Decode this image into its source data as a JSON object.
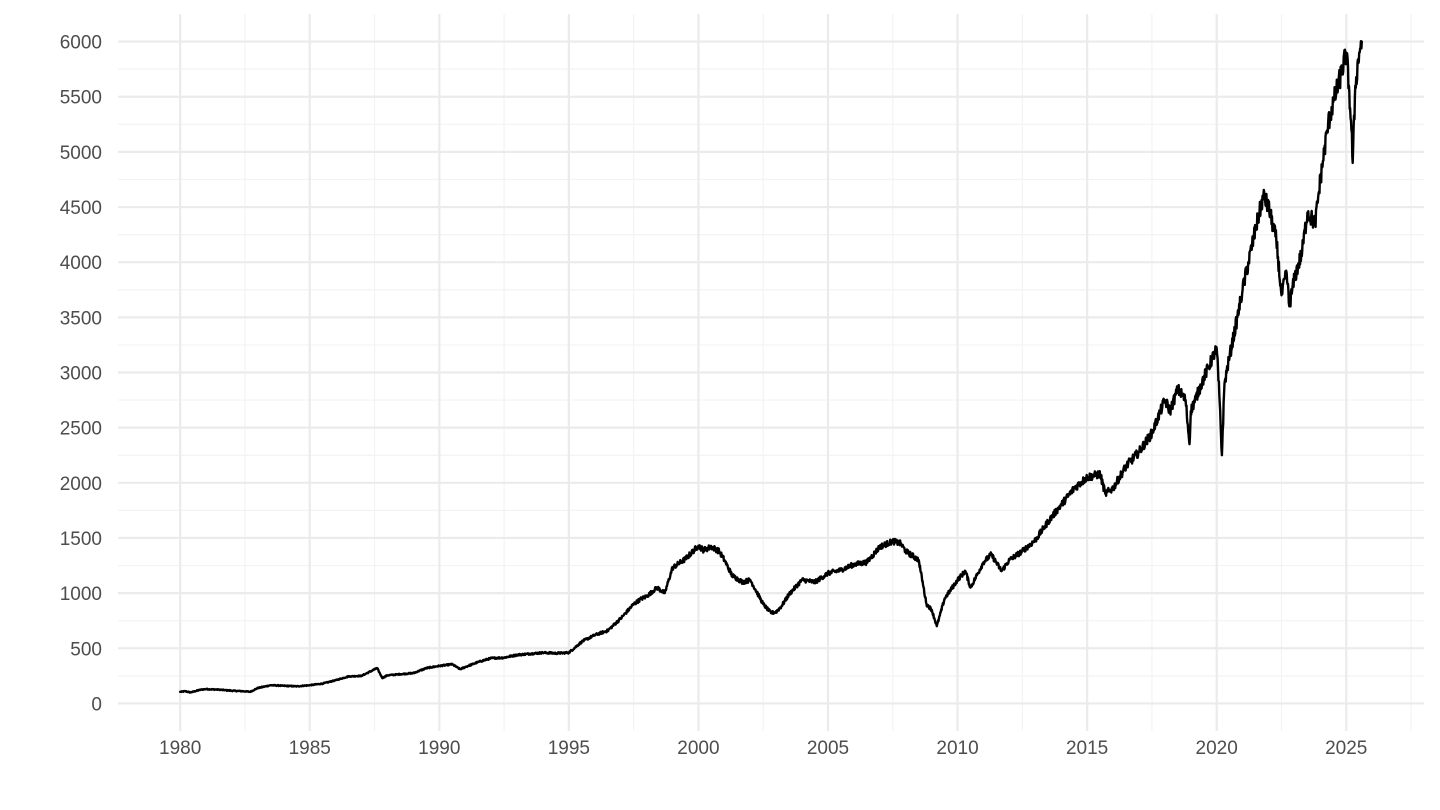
{
  "chart_data": {
    "type": "line",
    "title": "",
    "xlabel": "",
    "ylabel": "",
    "xlim": [
      1977.6,
      2028.0
    ],
    "ylim": [
      -250,
      6250
    ],
    "grid": true,
    "legend": "none",
    "line_color": "#000000",
    "grid_color": "#ebebeb",
    "x_ticks": [
      1980,
      1985,
      1990,
      1995,
      2000,
      2005,
      2010,
      2015,
      2020,
      2025
    ],
    "x_tick_labels": [
      "1980",
      "1985",
      "1990",
      "1995",
      "2000",
      "2005",
      "2010",
      "2015",
      "2020",
      "2025"
    ],
    "y_ticks": [
      0,
      500,
      1000,
      1500,
      2000,
      2500,
      3000,
      3500,
      4000,
      4500,
      5000,
      5500,
      6000
    ],
    "y_tick_labels": [
      "0",
      "500",
      "1000",
      "1500",
      "2000",
      "2500",
      "3000",
      "3500",
      "4000",
      "4500",
      "5000",
      "5500",
      "6000"
    ],
    "series": [
      {
        "x": [
          1980.0,
          1980.2,
          1980.4,
          1980.8,
          1981.0,
          1981.5,
          1982.0,
          1982.5,
          1982.7,
          1983.0,
          1983.5,
          1984.0,
          1984.5,
          1985.0,
          1985.5,
          1986.0,
          1986.5,
          1987.0,
          1987.6,
          1987.8,
          1988.0,
          1988.5,
          1989.0,
          1989.5,
          1990.0,
          1990.5,
          1990.8,
          1991.0,
          1991.5,
          1992.0,
          1992.5,
          1993.0,
          1993.5,
          1994.0,
          1994.5,
          1995.0,
          1995.5,
          1996.0,
          1996.5,
          1997.0,
          1997.5,
          1997.8,
          1998.0,
          1998.4,
          1998.7,
          1999.0,
          1999.5,
          2000.0,
          2000.2,
          2000.5,
          2000.8,
          2001.0,
          2001.3,
          2001.7,
          2002.0,
          2002.5,
          2002.8,
          2003.0,
          2003.2,
          2003.5,
          2004.0,
          2004.5,
          2005.0,
          2005.5,
          2006.0,
          2006.5,
          2007.0,
          2007.5,
          2007.8,
          2008.0,
          2008.5,
          2008.8,
          2009.0,
          2009.2,
          2009.5,
          2010.0,
          2010.3,
          2010.5,
          2011.0,
          2011.3,
          2011.7,
          2012.0,
          2012.5,
          2013.0,
          2013.5,
          2014.0,
          2014.5,
          2015.0,
          2015.5,
          2015.7,
          2016.0,
          2016.5,
          2017.0,
          2017.5,
          2018.0,
          2018.2,
          2018.5,
          2018.8,
          2018.95,
          2019.0,
          2019.5,
          2020.0,
          2020.1,
          2020.2,
          2020.3,
          2020.5,
          2020.8,
          2021.0,
          2021.5,
          2021.8,
          2022.0,
          2022.3,
          2022.5,
          2022.7,
          2022.8,
          2023.0,
          2023.3,
          2023.5,
          2023.8,
          2024.0,
          2024.3,
          2024.5,
          2024.8,
          2025.0,
          2025.1,
          2025.2,
          2025.25,
          2025.35,
          2025.5,
          2025.6
        ],
        "values": [
          105,
          110,
          100,
          125,
          130,
          125,
          115,
          110,
          105,
          140,
          165,
          160,
          155,
          165,
          180,
          210,
          245,
          250,
          320,
          230,
          255,
          265,
          275,
          320,
          340,
          355,
          310,
          330,
          375,
          410,
          415,
          440,
          450,
          460,
          455,
          460,
          560,
          620,
          660,
          770,
          900,
          950,
          970,
          1050,
          1000,
          1230,
          1310,
          1430,
          1390,
          1420,
          1380,
          1300,
          1160,
          1100,
          1120,
          900,
          820,
          830,
          880,
          990,
          1120,
          1100,
          1180,
          1210,
          1260,
          1280,
          1420,
          1470,
          1450,
          1380,
          1300,
          900,
          850,
          700,
          950,
          1120,
          1200,
          1050,
          1280,
          1350,
          1200,
          1300,
          1380,
          1480,
          1650,
          1800,
          1950,
          2050,
          2080,
          1900,
          1950,
          2150,
          2280,
          2450,
          2750,
          2650,
          2850,
          2750,
          2350,
          2650,
          2950,
          3220,
          2800,
          2250,
          2900,
          3150,
          3500,
          3750,
          4300,
          4600,
          4500,
          4200,
          3700,
          3900,
          3600,
          3850,
          4100,
          4450,
          4350,
          4750,
          5250,
          5450,
          5700,
          5900,
          5600,
          5200,
          4900,
          5600,
          5900,
          6000
        ]
      }
    ]
  }
}
